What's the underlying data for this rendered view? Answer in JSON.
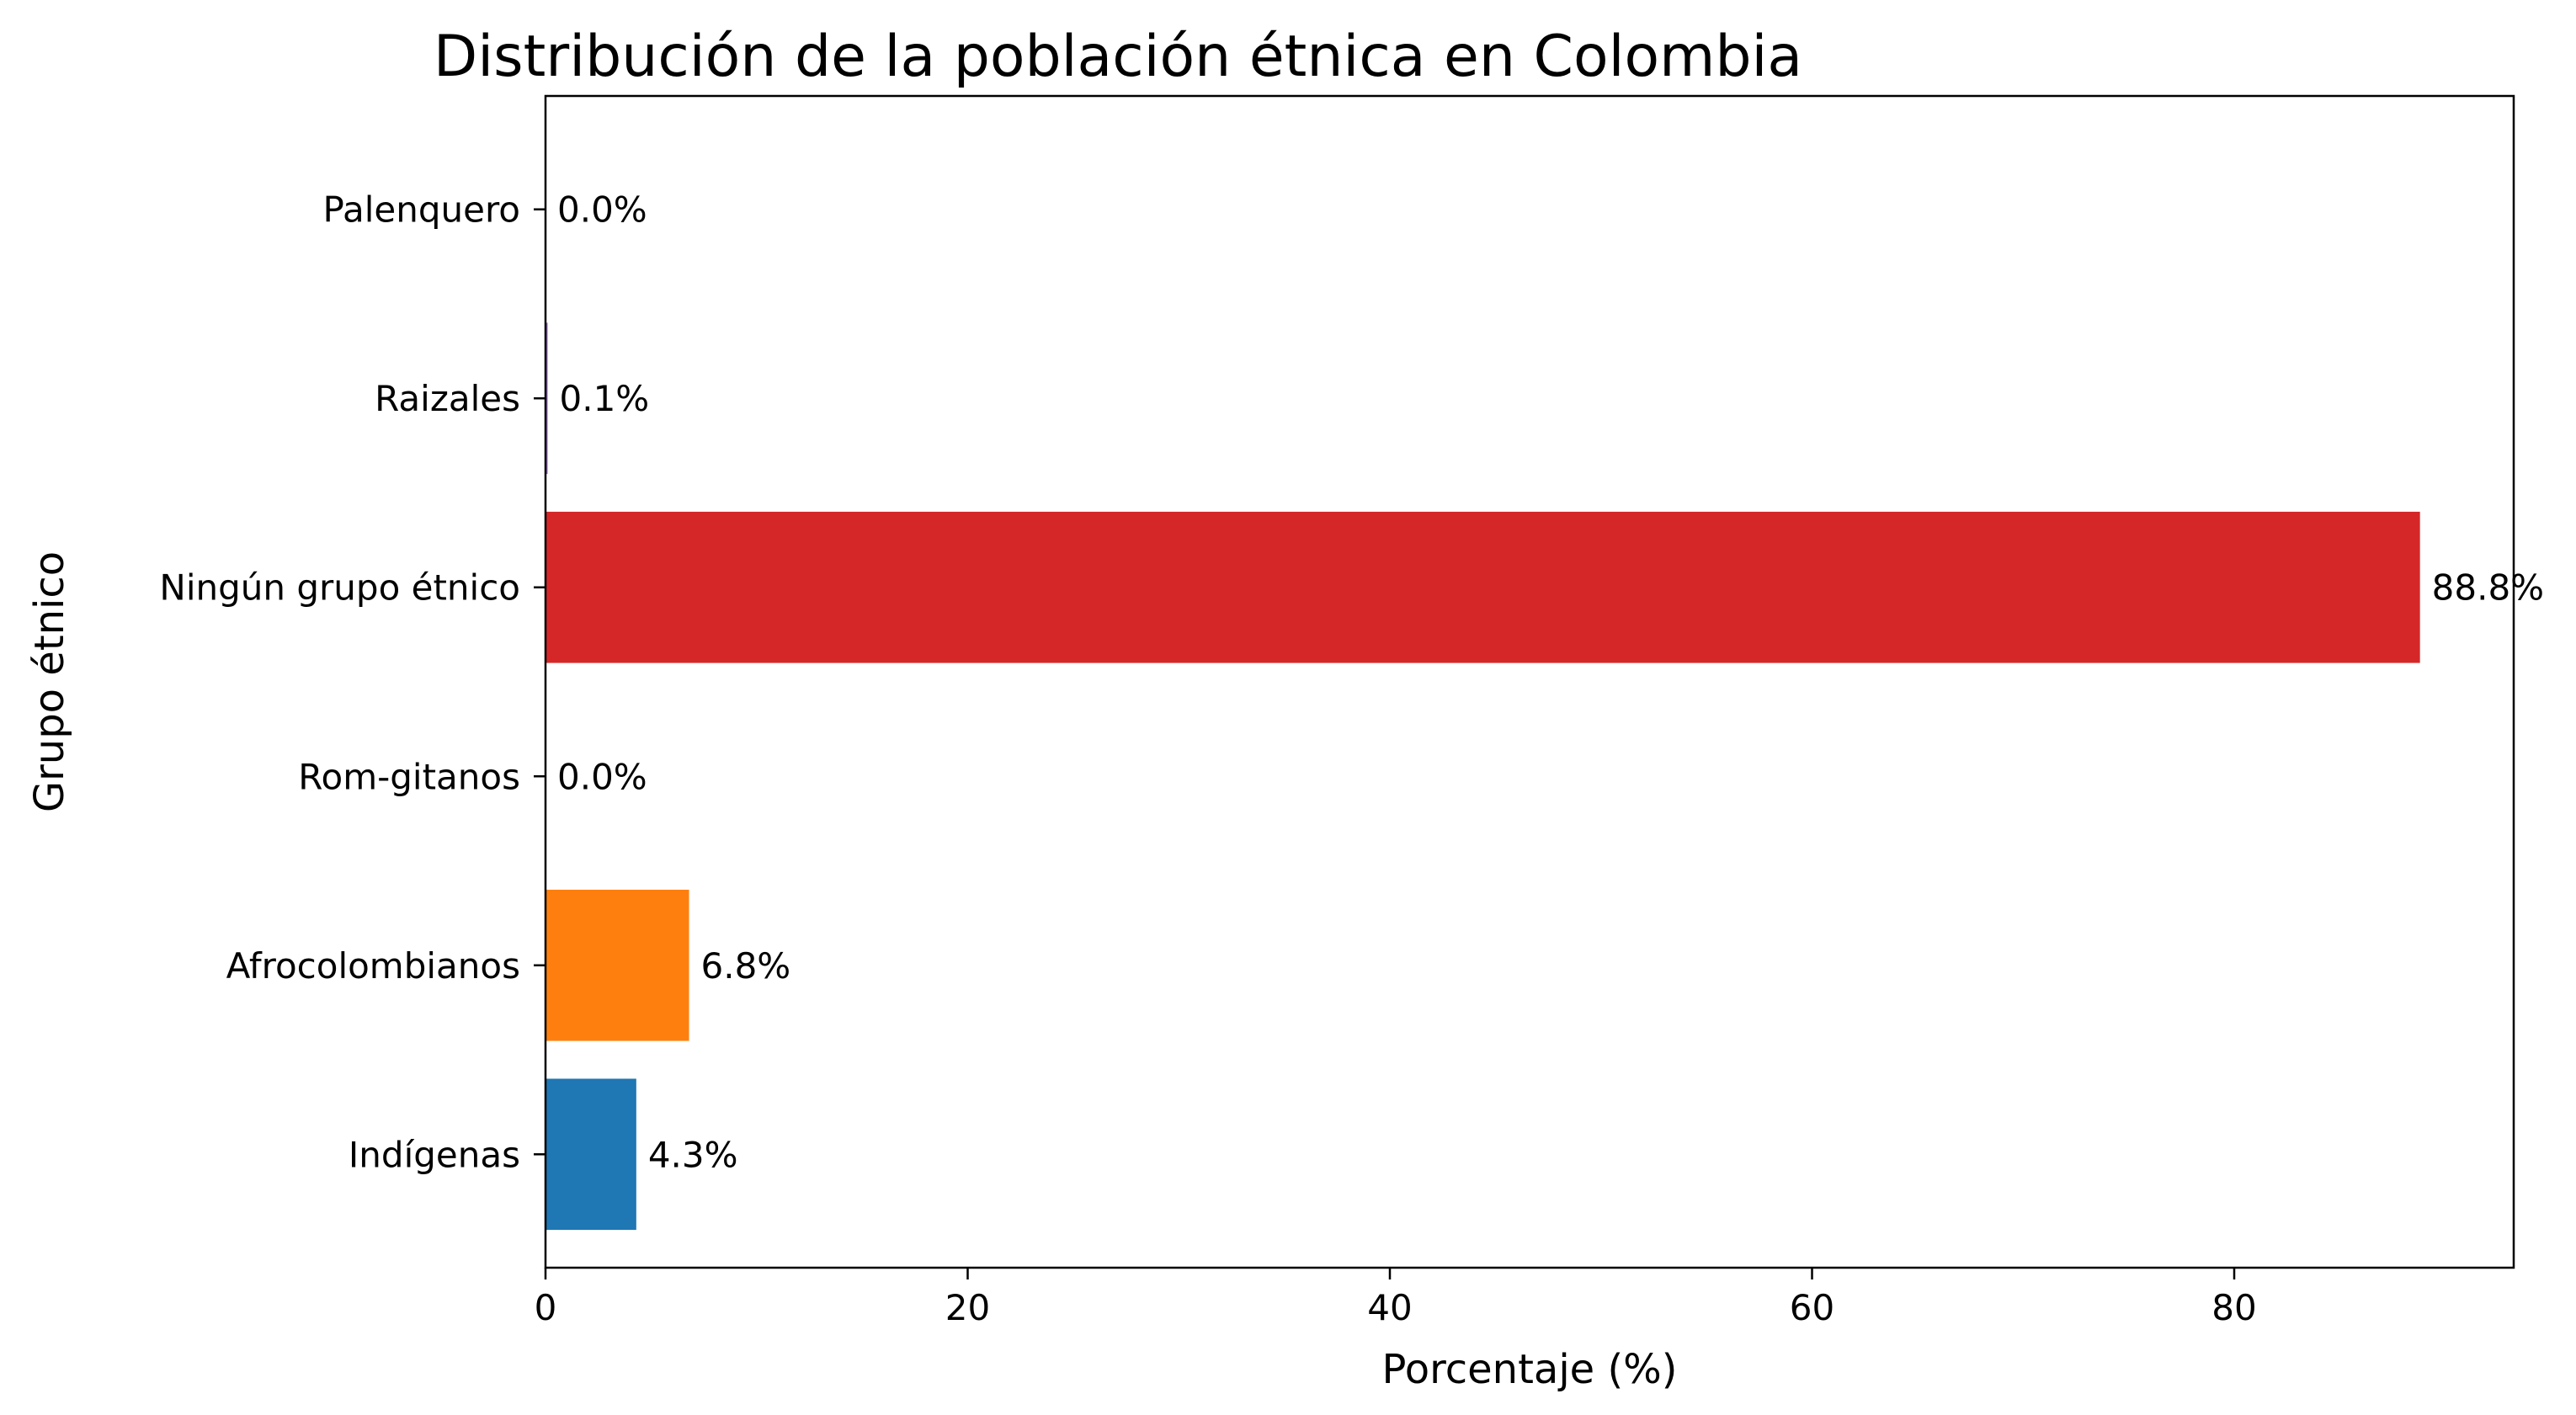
{
  "chart_data": {
    "type": "bar",
    "orientation": "horizontal",
    "title": "Distribución de la población étnica en Colombia",
    "xlabel": "Porcentaje (%)",
    "ylabel": "Grupo étnico",
    "categories": [
      "Indígenas",
      "Afrocolombianos",
      "Rom-gitanos",
      "Ningún grupo étnico",
      "Raizales",
      "Palenquero"
    ],
    "values": [
      4.3,
      6.8,
      0.0,
      88.8,
      0.1,
      0.0
    ],
    "data_labels": [
      "4.3%",
      "6.8%",
      "0.0%",
      "88.8%",
      "0.1%",
      "0.0%"
    ],
    "colors": [
      "#1f77b4",
      "#ff7f0e",
      "#2ca02c",
      "#d62728",
      "#9467bd",
      "#8c564b"
    ],
    "xlim": [
      0,
      93.24
    ],
    "xticks": [
      0,
      20,
      40,
      60,
      80
    ],
    "xtick_labels": [
      "0",
      "20",
      "40",
      "60",
      "80"
    ],
    "grid": false,
    "legend": "none"
  }
}
